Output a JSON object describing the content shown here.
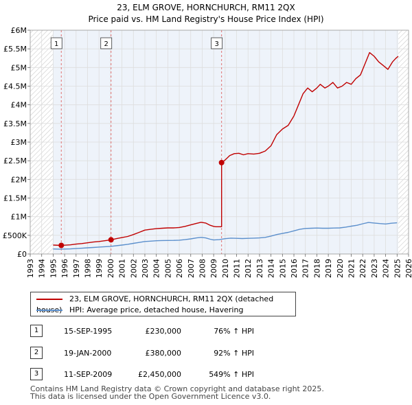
{
  "chart_data": {
    "type": "line",
    "title": "23, ELM GROVE, HORNCHURCH, RM11 2QX",
    "subtitle": "Price paid vs. HM Land Registry's House Price Index (HPI)",
    "xlabel": "",
    "ylabel": "",
    "xlim": [
      1993,
      2026
    ],
    "ylim": [
      0,
      6000000
    ],
    "x_ticks": [
      1993,
      1994,
      1995,
      1996,
      1997,
      1998,
      1999,
      2000,
      2001,
      2002,
      2003,
      2004,
      2005,
      2006,
      2007,
      2008,
      2009,
      2010,
      2011,
      2012,
      2013,
      2014,
      2015,
      2016,
      2017,
      2018,
      2019,
      2020,
      2021,
      2022,
      2023,
      2024,
      2025,
      2026
    ],
    "y_ticks": [
      {
        "value": 0,
        "label": "£0"
      },
      {
        "value": 500000,
        "label": "£500K"
      },
      {
        "value": 1000000,
        "label": "£1M"
      },
      {
        "value": 1500000,
        "label": "£1.5M"
      },
      {
        "value": 2000000,
        "label": "£2M"
      },
      {
        "value": 2500000,
        "label": "£2.5M"
      },
      {
        "value": 3000000,
        "label": "£3M"
      },
      {
        "value": 3500000,
        "label": "£3.5M"
      },
      {
        "value": 4000000,
        "label": "£4M"
      },
      {
        "value": 4500000,
        "label": "£4.5M"
      },
      {
        "value": 5000000,
        "label": "£5M"
      },
      {
        "value": 5500000,
        "label": "£5.5M"
      },
      {
        "value": 6000000,
        "label": "£6M"
      }
    ],
    "grid": true,
    "hatched_ranges": [
      [
        1993,
        1995.0
      ],
      [
        2025.1,
        2026
      ]
    ],
    "colors": {
      "price": "#c00000",
      "hpi": "#5b8fcc",
      "grid": "#dddddd",
      "plot_bg": "#eef3fa",
      "vline": "#e07070"
    },
    "series": [
      {
        "name": "23, ELM GROVE, HORNCHURCH, RM11 2QX (detached house)",
        "color": "#c00000",
        "points": [
          [
            1995.0,
            240000
          ],
          [
            1995.71,
            230000
          ],
          [
            1996.0,
            235000
          ],
          [
            1996.5,
            245000
          ],
          [
            1997.0,
            265000
          ],
          [
            1997.5,
            280000
          ],
          [
            1998.0,
            300000
          ],
          [
            1998.5,
            320000
          ],
          [
            1999.0,
            335000
          ],
          [
            1999.5,
            355000
          ],
          [
            2000.05,
            380000
          ],
          [
            2000.5,
            410000
          ],
          [
            2001.0,
            440000
          ],
          [
            2001.5,
            470000
          ],
          [
            2002.0,
            520000
          ],
          [
            2002.5,
            580000
          ],
          [
            2003.0,
            640000
          ],
          [
            2003.5,
            660000
          ],
          [
            2004.0,
            680000
          ],
          [
            2004.5,
            690000
          ],
          [
            2005.0,
            700000
          ],
          [
            2005.5,
            700000
          ],
          [
            2006.0,
            710000
          ],
          [
            2006.5,
            740000
          ],
          [
            2007.0,
            780000
          ],
          [
            2007.5,
            820000
          ],
          [
            2007.9,
            850000
          ],
          [
            2008.3,
            830000
          ],
          [
            2008.7,
            770000
          ],
          [
            2009.0,
            740000
          ],
          [
            2009.2,
            730000
          ],
          [
            2009.69,
            730000
          ],
          [
            2009.69,
            2450000
          ],
          [
            2010.0,
            2520000
          ],
          [
            2010.4,
            2640000
          ],
          [
            2010.8,
            2690000
          ],
          [
            2011.2,
            2700000
          ],
          [
            2011.6,
            2660000
          ],
          [
            2012.0,
            2690000
          ],
          [
            2012.5,
            2680000
          ],
          [
            2013.0,
            2700000
          ],
          [
            2013.5,
            2760000
          ],
          [
            2014.0,
            2900000
          ],
          [
            2014.5,
            3200000
          ],
          [
            2015.0,
            3350000
          ],
          [
            2015.5,
            3450000
          ],
          [
            2016.0,
            3700000
          ],
          [
            2016.4,
            4000000
          ],
          [
            2016.8,
            4300000
          ],
          [
            2017.2,
            4450000
          ],
          [
            2017.6,
            4350000
          ],
          [
            2018.0,
            4450000
          ],
          [
            2018.3,
            4550000
          ],
          [
            2018.7,
            4450000
          ],
          [
            2019.0,
            4500000
          ],
          [
            2019.4,
            4600000
          ],
          [
            2019.8,
            4450000
          ],
          [
            2020.2,
            4500000
          ],
          [
            2020.6,
            4600000
          ],
          [
            2021.0,
            4550000
          ],
          [
            2021.4,
            4700000
          ],
          [
            2021.8,
            4800000
          ],
          [
            2022.2,
            5100000
          ],
          [
            2022.6,
            5400000
          ],
          [
            2023.0,
            5300000
          ],
          [
            2023.4,
            5150000
          ],
          [
            2023.8,
            5050000
          ],
          [
            2024.2,
            4950000
          ],
          [
            2024.6,
            5150000
          ],
          [
            2024.9,
            5250000
          ],
          [
            2025.1,
            5300000
          ]
        ]
      },
      {
        "name": "HPI: Average price, detached house, Havering",
        "color": "#5b8fcc",
        "points": [
          [
            1995.0,
            135000
          ],
          [
            1995.5,
            130000
          ],
          [
            1996.0,
            132000
          ],
          [
            1996.5,
            137000
          ],
          [
            1997.0,
            145000
          ],
          [
            1997.5,
            155000
          ],
          [
            1998.0,
            165000
          ],
          [
            1998.5,
            175000
          ],
          [
            1999.0,
            185000
          ],
          [
            1999.5,
            195000
          ],
          [
            2000.0,
            205000
          ],
          [
            2000.5,
            220000
          ],
          [
            2001.0,
            240000
          ],
          [
            2001.5,
            260000
          ],
          [
            2002.0,
            285000
          ],
          [
            2002.5,
            310000
          ],
          [
            2003.0,
            335000
          ],
          [
            2003.5,
            345000
          ],
          [
            2004.0,
            355000
          ],
          [
            2004.5,
            360000
          ],
          [
            2005.0,
            362000
          ],
          [
            2005.5,
            365000
          ],
          [
            2006.0,
            370000
          ],
          [
            2006.5,
            385000
          ],
          [
            2007.0,
            405000
          ],
          [
            2007.5,
            430000
          ],
          [
            2007.9,
            445000
          ],
          [
            2008.3,
            430000
          ],
          [
            2008.7,
            395000
          ],
          [
            2009.0,
            375000
          ],
          [
            2009.5,
            385000
          ],
          [
            2010.0,
            410000
          ],
          [
            2010.5,
            425000
          ],
          [
            2011.0,
            420000
          ],
          [
            2011.5,
            415000
          ],
          [
            2012.0,
            420000
          ],
          [
            2012.5,
            425000
          ],
          [
            2013.0,
            430000
          ],
          [
            2013.5,
            445000
          ],
          [
            2014.0,
            480000
          ],
          [
            2014.5,
            520000
          ],
          [
            2015.0,
            550000
          ],
          [
            2015.5,
            580000
          ],
          [
            2016.0,
            620000
          ],
          [
            2016.5,
            660000
          ],
          [
            2017.0,
            685000
          ],
          [
            2017.5,
            690000
          ],
          [
            2018.0,
            695000
          ],
          [
            2018.5,
            690000
          ],
          [
            2019.0,
            690000
          ],
          [
            2019.5,
            695000
          ],
          [
            2020.0,
            700000
          ],
          [
            2020.5,
            720000
          ],
          [
            2021.0,
            745000
          ],
          [
            2021.5,
            770000
          ],
          [
            2022.0,
            810000
          ],
          [
            2022.5,
            845000
          ],
          [
            2023.0,
            830000
          ],
          [
            2023.5,
            815000
          ],
          [
            2024.0,
            805000
          ],
          [
            2024.5,
            825000
          ],
          [
            2025.0,
            835000
          ]
        ]
      }
    ],
    "sales": [
      {
        "label": "1",
        "x": 1995.71,
        "price": 230000
      },
      {
        "label": "2",
        "x": 2000.05,
        "price": 380000
      },
      {
        "label": "3",
        "x": 2009.69,
        "price": 2450000
      }
    ]
  },
  "legend": {
    "property": "23, ELM GROVE, HORNCHURCH, RM11 2QX (detached house)",
    "hpi": "HPI: Average price, detached house, Havering"
  },
  "transactions": [
    {
      "num": "1",
      "date": "15-SEP-1995",
      "price": "£230,000",
      "hpi": "76% ↑ HPI"
    },
    {
      "num": "2",
      "date": "19-JAN-2000",
      "price": "£380,000",
      "hpi": "92% ↑ HPI"
    },
    {
      "num": "3",
      "date": "11-SEP-2009",
      "price": "£2,450,000",
      "hpi": "549% ↑ HPI"
    }
  ],
  "footer": {
    "line1": "Contains HM Land Registry data © Crown copyright and database right 2025.",
    "line2": "This data is licensed under the Open Government Licence v3.0."
  }
}
